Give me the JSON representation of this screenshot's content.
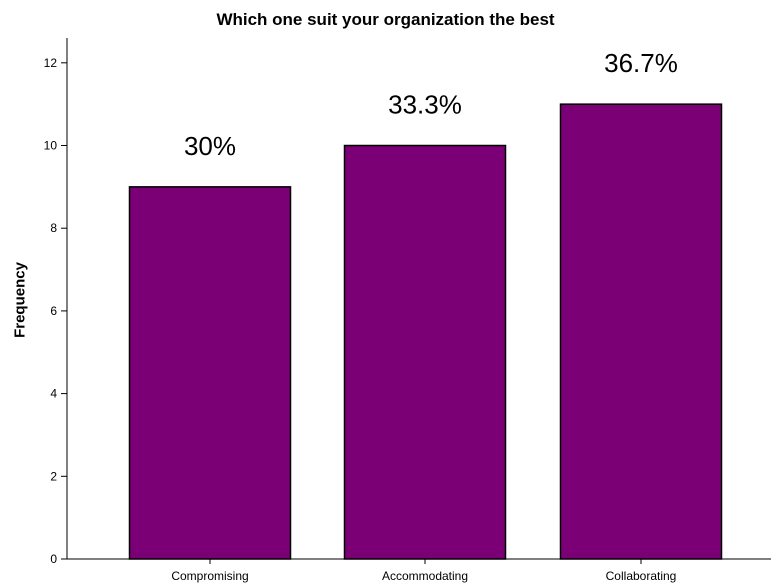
{
  "chart_data": {
    "type": "bar",
    "title": "Which one suit your organization the best",
    "xlabel": "",
    "ylabel": "Frequency",
    "categories": [
      "Compromising",
      "Accommodating",
      "Collaborating"
    ],
    "values": [
      9,
      10,
      11
    ],
    "data_labels": [
      "30%",
      "33.3%",
      "36.7%"
    ],
    "ylim": [
      0,
      12.6
    ],
    "yticks": [
      0,
      2,
      4,
      6,
      8,
      10,
      12
    ],
    "grid": false,
    "legend": "none",
    "colors": {
      "bar_fill": "#7b0075",
      "bar_stroke": "#000000",
      "axis": "#000000",
      "background": "#ffffff"
    }
  }
}
